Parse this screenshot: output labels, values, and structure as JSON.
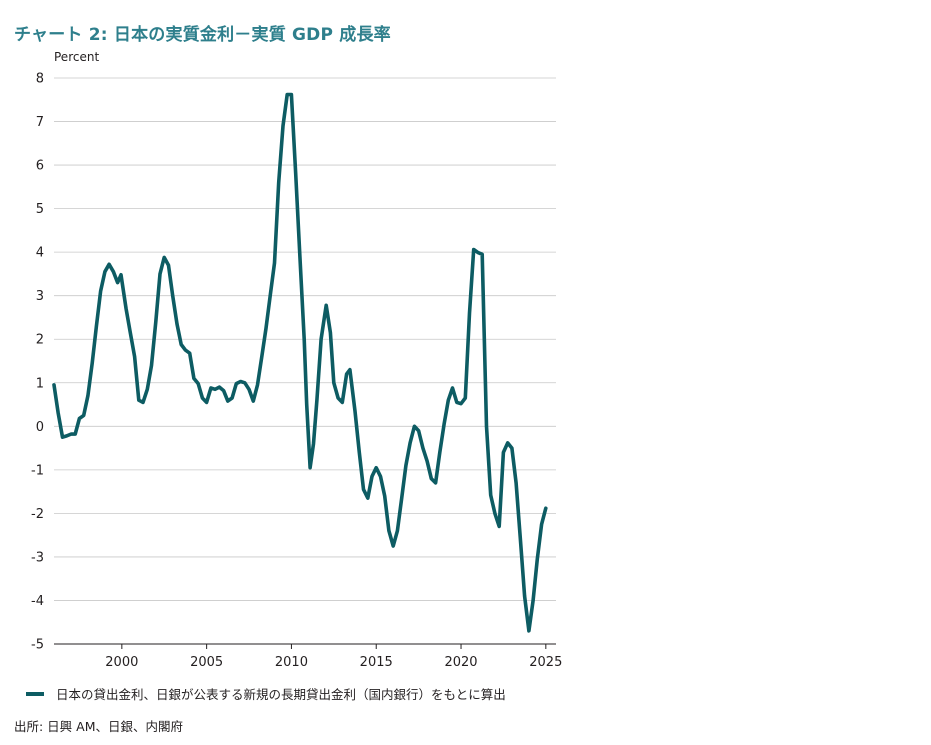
{
  "chart_data": {
    "type": "line",
    "title": "チャート 2: 日本の実質金利－実質 GDP 成長率",
    "ylabel": "Percent",
    "xlim": [
      1996,
      2025.6
    ],
    "ylim": [
      -5,
      8
    ],
    "yticks": [
      8,
      7,
      6,
      5,
      4,
      3,
      2,
      1,
      0,
      -1,
      -2,
      -3,
      -4,
      -5
    ],
    "yticklabels": [
      "8",
      "7",
      "6",
      "5",
      "4",
      "3",
      "2",
      "1",
      "0",
      "-1",
      "-2",
      "-3",
      "-4",
      "-5"
    ],
    "xticks": [
      2000,
      2005,
      2010,
      2015,
      2020,
      2025
    ],
    "xticklabels": [
      "2000",
      "2005",
      "2010",
      "2015",
      "2020",
      "2025"
    ],
    "grid": true,
    "legend_position": "bottom-left",
    "series": [
      {
        "name": "日本の貸出金利、日銀が公表する新規の長期貸出金利（国内銀行）をもとに算出",
        "color": "#0d5c63",
        "points": [
          [
            1996.0,
            0.95
          ],
          [
            1996.25,
            0.3
          ],
          [
            1996.5,
            -0.25
          ],
          [
            1996.75,
            -0.22
          ],
          [
            1997.0,
            -0.18
          ],
          [
            1997.25,
            -0.18
          ],
          [
            1997.5,
            0.18
          ],
          [
            1997.75,
            0.25
          ],
          [
            1998.0,
            0.7
          ],
          [
            1998.25,
            1.45
          ],
          [
            1998.5,
            2.3
          ],
          [
            1998.75,
            3.1
          ],
          [
            1999.0,
            3.55
          ],
          [
            1999.25,
            3.72
          ],
          [
            1999.5,
            3.55
          ],
          [
            1999.75,
            3.3
          ],
          [
            1999.95,
            3.48
          ],
          [
            2000.25,
            2.7
          ],
          [
            2000.5,
            2.15
          ],
          [
            2000.75,
            1.6
          ],
          [
            2001.0,
            0.6
          ],
          [
            2001.25,
            0.55
          ],
          [
            2001.5,
            0.85
          ],
          [
            2001.75,
            1.4
          ],
          [
            2002.0,
            2.4
          ],
          [
            2002.25,
            3.5
          ],
          [
            2002.5,
            3.88
          ],
          [
            2002.75,
            3.7
          ],
          [
            2003.0,
            3.0
          ],
          [
            2003.25,
            2.35
          ],
          [
            2003.5,
            1.88
          ],
          [
            2003.75,
            1.75
          ],
          [
            2004.0,
            1.68
          ],
          [
            2004.25,
            1.1
          ],
          [
            2004.5,
            0.98
          ],
          [
            2004.75,
            0.65
          ],
          [
            2005.0,
            0.55
          ],
          [
            2005.25,
            0.88
          ],
          [
            2005.5,
            0.85
          ],
          [
            2005.75,
            0.9
          ],
          [
            2006.0,
            0.82
          ],
          [
            2006.25,
            0.58
          ],
          [
            2006.5,
            0.65
          ],
          [
            2006.75,
            0.98
          ],
          [
            2007.0,
            1.03
          ],
          [
            2007.25,
            1.0
          ],
          [
            2007.5,
            0.85
          ],
          [
            2007.75,
            0.58
          ],
          [
            2008.0,
            0.95
          ],
          [
            2008.25,
            1.6
          ],
          [
            2008.5,
            2.25
          ],
          [
            2008.75,
            3.0
          ],
          [
            2009.0,
            3.75
          ],
          [
            2009.25,
            5.6
          ],
          [
            2009.5,
            6.9
          ],
          [
            2009.75,
            7.62
          ],
          [
            2010.0,
            7.62
          ],
          [
            2010.25,
            5.8
          ],
          [
            2010.5,
            3.9
          ],
          [
            2010.75,
            2.0
          ],
          [
            2010.9,
            0.5
          ],
          [
            2011.1,
            -0.95
          ],
          [
            2011.3,
            -0.4
          ],
          [
            2011.5,
            0.6
          ],
          [
            2011.75,
            2.0
          ],
          [
            2012.05,
            2.78
          ],
          [
            2012.3,
            2.15
          ],
          [
            2012.5,
            1.0
          ],
          [
            2012.75,
            0.65
          ],
          [
            2013.0,
            0.55
          ],
          [
            2013.25,
            1.2
          ],
          [
            2013.45,
            1.3
          ],
          [
            2013.75,
            0.35
          ],
          [
            2014.0,
            -0.6
          ],
          [
            2014.25,
            -1.45
          ],
          [
            2014.5,
            -1.65
          ],
          [
            2014.75,
            -1.15
          ],
          [
            2015.0,
            -0.95
          ],
          [
            2015.25,
            -1.15
          ],
          [
            2015.5,
            -1.6
          ],
          [
            2015.75,
            -2.4
          ],
          [
            2016.0,
            -2.75
          ],
          [
            2016.25,
            -2.4
          ],
          [
            2016.5,
            -1.65
          ],
          [
            2016.75,
            -0.9
          ],
          [
            2017.0,
            -0.38
          ],
          [
            2017.25,
            0.0
          ],
          [
            2017.5,
            -0.1
          ],
          [
            2017.75,
            -0.5
          ],
          [
            2018.0,
            -0.8
          ],
          [
            2018.25,
            -1.2
          ],
          [
            2018.5,
            -1.3
          ],
          [
            2018.75,
            -0.6
          ],
          [
            2019.0,
            0.05
          ],
          [
            2019.25,
            0.6
          ],
          [
            2019.5,
            0.88
          ],
          [
            2019.75,
            0.55
          ],
          [
            2020.0,
            0.52
          ],
          [
            2020.25,
            0.65
          ],
          [
            2020.5,
            2.6
          ],
          [
            2020.75,
            4.06
          ],
          [
            2021.0,
            3.99
          ],
          [
            2021.25,
            3.95
          ],
          [
            2021.5,
            0.0
          ],
          [
            2021.75,
            -1.58
          ],
          [
            2022.0,
            -2.0
          ],
          [
            2022.25,
            -2.3
          ],
          [
            2022.5,
            -0.6
          ],
          [
            2022.75,
            -0.38
          ],
          [
            2023.0,
            -0.5
          ],
          [
            2023.25,
            -1.3
          ],
          [
            2023.5,
            -2.6
          ],
          [
            2023.75,
            -3.9
          ],
          [
            2024.0,
            -4.7
          ],
          [
            2024.25,
            -4.0
          ],
          [
            2024.5,
            -3.05
          ],
          [
            2024.75,
            -2.25
          ],
          [
            2025.0,
            -1.88
          ]
        ]
      }
    ]
  },
  "source": "出所: 日興 AM、日銀、内閣府"
}
